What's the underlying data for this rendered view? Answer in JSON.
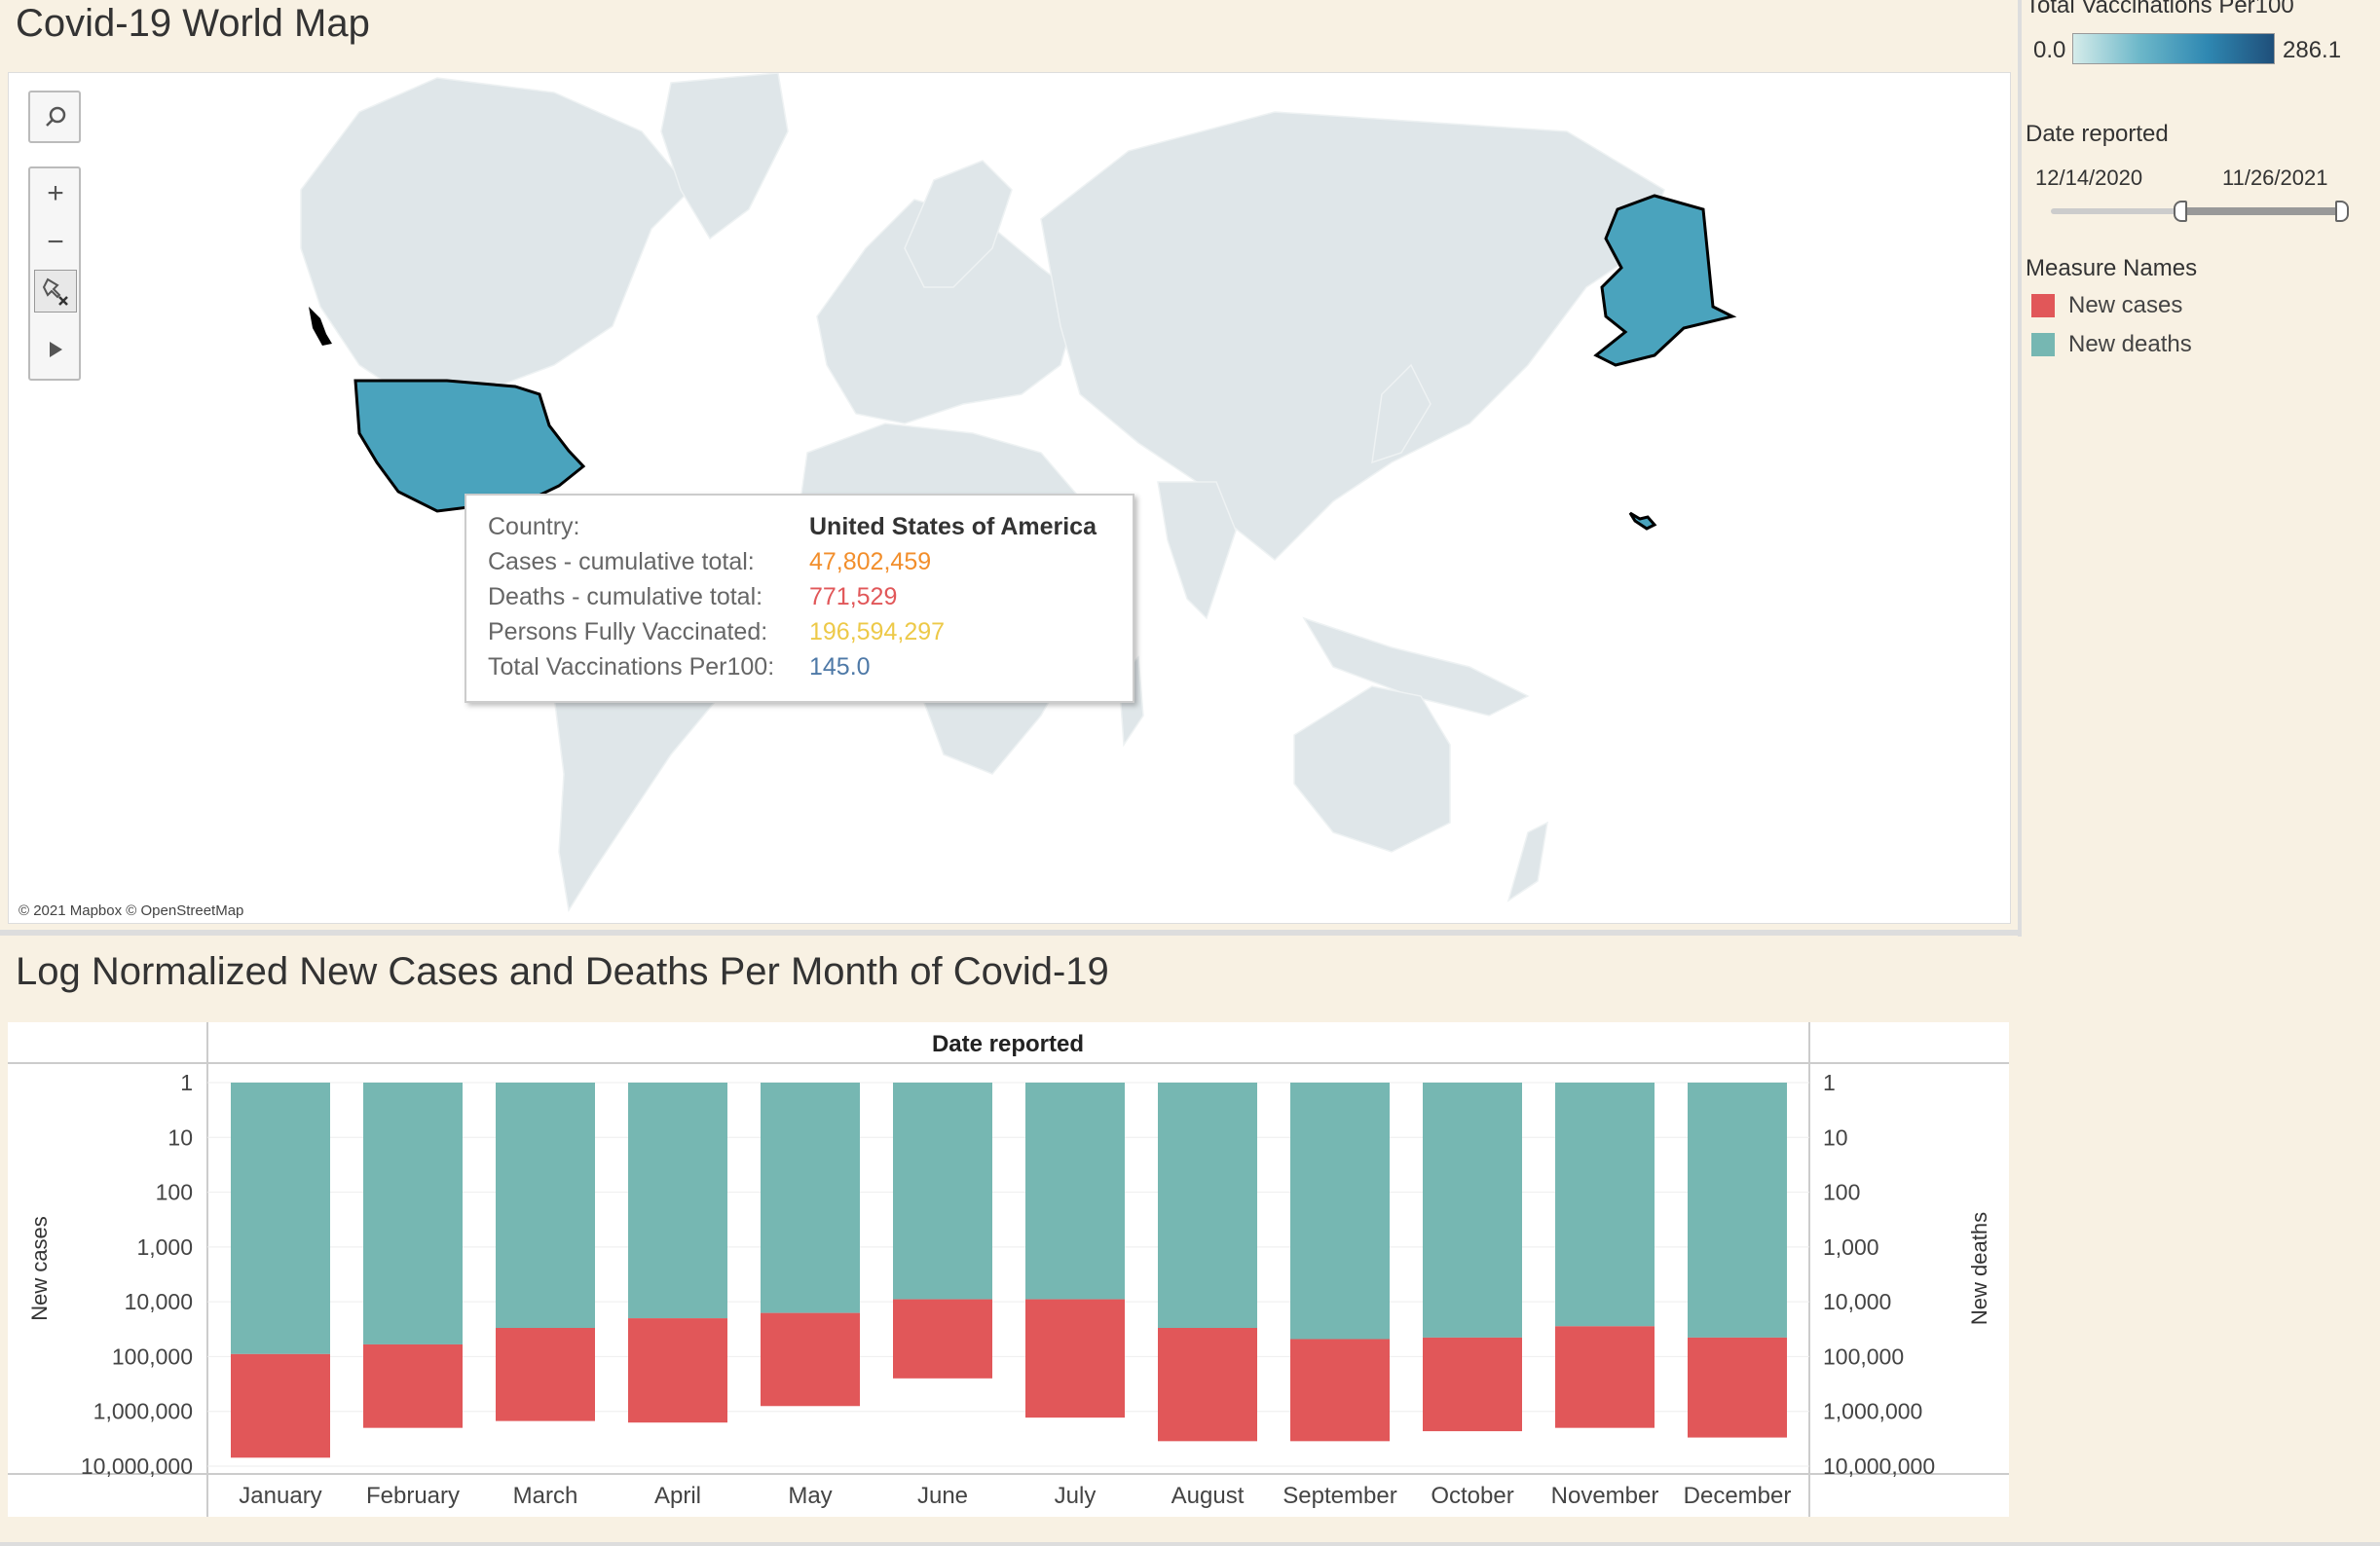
{
  "map": {
    "title": "Covid-19 World Map",
    "attribution": "© 2021 Mapbox © OpenStreetMap",
    "toolbar": {
      "search": "search",
      "zoom_in": "+",
      "zoom_out": "−",
      "pin": "pin",
      "play": "play"
    }
  },
  "tooltip": {
    "rows": [
      {
        "label": "Country:",
        "value": "United States of America",
        "color": "#333333"
      },
      {
        "label": "Cases - cumulative total:",
        "value": "47,802,459",
        "color": "#f28e2b"
      },
      {
        "label": "Deaths - cumulative total:",
        "value": "771,529",
        "color": "#e15759"
      },
      {
        "label": "Persons Fully Vaccinated:",
        "value": "196,594,297",
        "color": "#edc948"
      },
      {
        "label": "Total Vaccinations Per100:",
        "value": "145.0",
        "color": "#4e79a7"
      }
    ]
  },
  "legend": {
    "vacc_title": "Total Vaccinations Per100",
    "vacc_min": "0.0",
    "vacc_max": "286.1",
    "date_title": "Date reported",
    "date_from": "12/14/2020",
    "date_to": "11/26/2021",
    "measure_title": "Measure Names",
    "measures": [
      {
        "label": "New cases",
        "color": "#e15759"
      },
      {
        "label": "New deaths",
        "color": "#76b7b2"
      }
    ]
  },
  "colors": {
    "highlight": "#4aa3bd",
    "land": "#dfe6e9",
    "cases": "#e15759",
    "deaths": "#76b7b2"
  },
  "chart_data": {
    "type": "bar",
    "title": "Log Normalized New Cases and Deaths Per Month of Covid-19",
    "header": "Date reported",
    "ylabel_left": "New cases",
    "ylabel_right": "New deaths",
    "y_scale": "log",
    "y_reversed": true,
    "ylim": [
      1,
      10000000
    ],
    "yticks": [
      "1",
      "10",
      "100",
      "1,000",
      "10,000",
      "100,000",
      "1,000,000",
      "10,000,000"
    ],
    "categories": [
      "January",
      "February",
      "March",
      "April",
      "May",
      "June",
      "July",
      "August",
      "September",
      "October",
      "November",
      "December"
    ],
    "series": [
      {
        "name": "New deaths",
        "values": [
          90000,
          60000,
          30000,
          20000,
          16000,
          9000,
          9000,
          30000,
          48000,
          45000,
          28000,
          45000
        ]
      },
      {
        "name": "New cases",
        "values": [
          7000000,
          2000000,
          1500000,
          1600000,
          800000,
          250000,
          1300000,
          3500000,
          3500000,
          2300000,
          2000000,
          3000000
        ]
      }
    ]
  }
}
